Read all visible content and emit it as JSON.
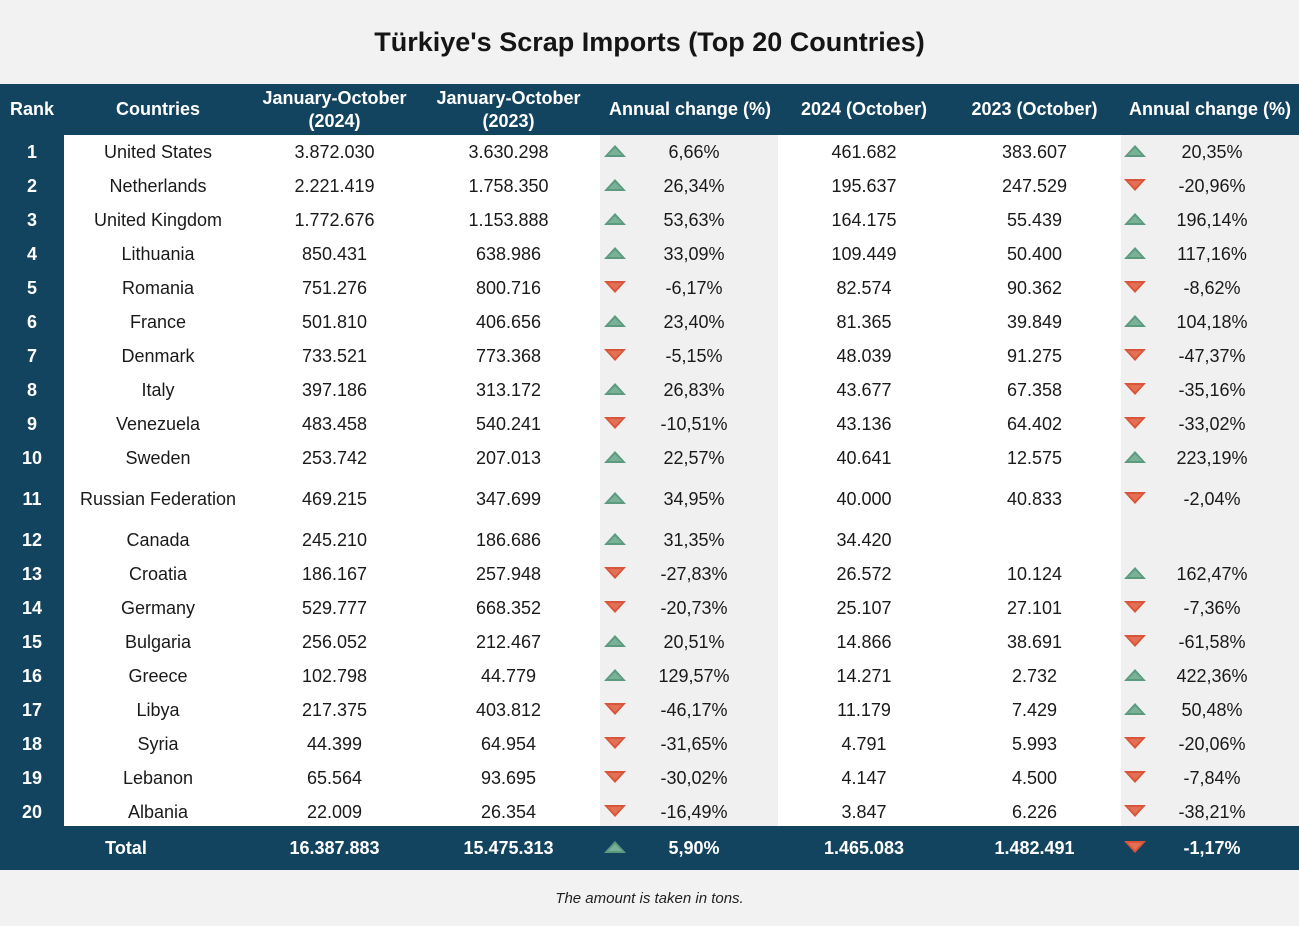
{
  "title": "Türkiye's Scrap Imports (Top 20 Countries)",
  "headers": {
    "rank": "Rank",
    "country": "Countries",
    "jan_oct_2024_line1": "January-October",
    "jan_oct_2024_line2": "(2024)",
    "jan_oct_2023_line1": "January-October",
    "jan_oct_2023_line2": "(2023)",
    "ytd_change": "Annual change (%)",
    "oct_2024": "2024 (October)",
    "oct_2023": "2023 (October)",
    "oct_change": "Annual change (%)"
  },
  "colors": {
    "header_bg": "#13445f",
    "up": "#5c9a7f",
    "down": "#d9553a",
    "grey_column": "#f0f0f0"
  },
  "chart_data": {
    "type": "table",
    "title": "Türkiye's Scrap Imports (Top 20 Countries)",
    "columns": [
      "Rank",
      "Countries",
      "January-October (2024)",
      "January-October (2023)",
      "Annual change (%)",
      "2024 (October)",
      "2023 (October)",
      "Annual change (%)"
    ],
    "rows": [
      {
        "rank": "1",
        "country": "United States",
        "ytd2024": "3.872.030",
        "ytd2023": "3.630.298",
        "ytd_change": "6,66%",
        "ytd_dir": "up",
        "oct2024": "461.682",
        "oct2023": "383.607",
        "oct_change": "20,35%",
        "oct_dir": "up"
      },
      {
        "rank": "2",
        "country": "Netherlands",
        "ytd2024": "2.221.419",
        "ytd2023": "1.758.350",
        "ytd_change": "26,34%",
        "ytd_dir": "up",
        "oct2024": "195.637",
        "oct2023": "247.529",
        "oct_change": "-20,96%",
        "oct_dir": "down"
      },
      {
        "rank": "3",
        "country": "United Kingdom",
        "ytd2024": "1.772.676",
        "ytd2023": "1.153.888",
        "ytd_change": "53,63%",
        "ytd_dir": "up",
        "oct2024": "164.175",
        "oct2023": "55.439",
        "oct_change": "196,14%",
        "oct_dir": "up"
      },
      {
        "rank": "4",
        "country": "Lithuania",
        "ytd2024": "850.431",
        "ytd2023": "638.986",
        "ytd_change": "33,09%",
        "ytd_dir": "up",
        "oct2024": "109.449",
        "oct2023": "50.400",
        "oct_change": "117,16%",
        "oct_dir": "up"
      },
      {
        "rank": "5",
        "country": "Romania",
        "ytd2024": "751.276",
        "ytd2023": "800.716",
        "ytd_change": "-6,17%",
        "ytd_dir": "down",
        "oct2024": "82.574",
        "oct2023": "90.362",
        "oct_change": "-8,62%",
        "oct_dir": "down"
      },
      {
        "rank": "6",
        "country": "France",
        "ytd2024": "501.810",
        "ytd2023": "406.656",
        "ytd_change": "23,40%",
        "ytd_dir": "up",
        "oct2024": "81.365",
        "oct2023": "39.849",
        "oct_change": "104,18%",
        "oct_dir": "up"
      },
      {
        "rank": "7",
        "country": "Denmark",
        "ytd2024": "733.521",
        "ytd2023": "773.368",
        "ytd_change": "-5,15%",
        "ytd_dir": "down",
        "oct2024": "48.039",
        "oct2023": "91.275",
        "oct_change": "-47,37%",
        "oct_dir": "down"
      },
      {
        "rank": "8",
        "country": "Italy",
        "ytd2024": "397.186",
        "ytd2023": "313.172",
        "ytd_change": "26,83%",
        "ytd_dir": "up",
        "oct2024": "43.677",
        "oct2023": "67.358",
        "oct_change": "-35,16%",
        "oct_dir": "down"
      },
      {
        "rank": "9",
        "country": "Venezuela",
        "ytd2024": "483.458",
        "ytd2023": "540.241",
        "ytd_change": "-10,51%",
        "ytd_dir": "down",
        "oct2024": "43.136",
        "oct2023": "64.402",
        "oct_change": "-33,02%",
        "oct_dir": "down"
      },
      {
        "rank": "10",
        "country": "Sweden",
        "ytd2024": "253.742",
        "ytd2023": "207.013",
        "ytd_change": "22,57%",
        "ytd_dir": "up",
        "oct2024": "40.641",
        "oct2023": "12.575",
        "oct_change": "223,19%",
        "oct_dir": "up"
      },
      {
        "rank": "11",
        "country": "Russian Federation",
        "ytd2024": "469.215",
        "ytd2023": "347.699",
        "ytd_change": "34,95%",
        "ytd_dir": "up",
        "oct2024": "40.000",
        "oct2023": "40.833",
        "oct_change": "-2,04%",
        "oct_dir": "down"
      },
      {
        "rank": "12",
        "country": "Canada",
        "ytd2024": "245.210",
        "ytd2023": "186.686",
        "ytd_change": "31,35%",
        "ytd_dir": "up",
        "oct2024": "34.420",
        "oct2023": "",
        "oct_change": "",
        "oct_dir": ""
      },
      {
        "rank": "13",
        "country": "Croatia",
        "ytd2024": "186.167",
        "ytd2023": "257.948",
        "ytd_change": "-27,83%",
        "ytd_dir": "down",
        "oct2024": "26.572",
        "oct2023": "10.124",
        "oct_change": "162,47%",
        "oct_dir": "up"
      },
      {
        "rank": "14",
        "country": "Germany",
        "ytd2024": "529.777",
        "ytd2023": "668.352",
        "ytd_change": "-20,73%",
        "ytd_dir": "down",
        "oct2024": "25.107",
        "oct2023": "27.101",
        "oct_change": "-7,36%",
        "oct_dir": "down"
      },
      {
        "rank": "15",
        "country": "Bulgaria",
        "ytd2024": "256.052",
        "ytd2023": "212.467",
        "ytd_change": "20,51%",
        "ytd_dir": "up",
        "oct2024": "14.866",
        "oct2023": "38.691",
        "oct_change": "-61,58%",
        "oct_dir": "down"
      },
      {
        "rank": "16",
        "country": "Greece",
        "ytd2024": "102.798",
        "ytd2023": "44.779",
        "ytd_change": "129,57%",
        "ytd_dir": "up",
        "oct2024": "14.271",
        "oct2023": "2.732",
        "oct_change": "422,36%",
        "oct_dir": "up"
      },
      {
        "rank": "17",
        "country": "Libya",
        "ytd2024": "217.375",
        "ytd2023": "403.812",
        "ytd_change": "-46,17%",
        "ytd_dir": "down",
        "oct2024": "11.179",
        "oct2023": "7.429",
        "oct_change": "50,48%",
        "oct_dir": "up"
      },
      {
        "rank": "18",
        "country": "Syria",
        "ytd2024": "44.399",
        "ytd2023": "64.954",
        "ytd_change": "-31,65%",
        "ytd_dir": "down",
        "oct2024": "4.791",
        "oct2023": "5.993",
        "oct_change": "-20,06%",
        "oct_dir": "down"
      },
      {
        "rank": "19",
        "country": "Lebanon",
        "ytd2024": "65.564",
        "ytd2023": "93.695",
        "ytd_change": "-30,02%",
        "ytd_dir": "down",
        "oct2024": "4.147",
        "oct2023": "4.500",
        "oct_change": "-7,84%",
        "oct_dir": "down"
      },
      {
        "rank": "20",
        "country": "Albania",
        "ytd2024": "22.009",
        "ytd2023": "26.354",
        "ytd_change": "-16,49%",
        "ytd_dir": "down",
        "oct2024": "3.847",
        "oct2023": "6.226",
        "oct_change": "-38,21%",
        "oct_dir": "down"
      }
    ],
    "total": {
      "label": "Total",
      "ytd2024": "16.387.883",
      "ytd2023": "15.475.313",
      "ytd_change": "5,90%",
      "ytd_dir": "up",
      "oct2024": "1.465.083",
      "oct2023": "1.482.491",
      "oct_change": "-1,17%",
      "oct_dir": "down"
    }
  },
  "footer": "The amount is taken in tons."
}
